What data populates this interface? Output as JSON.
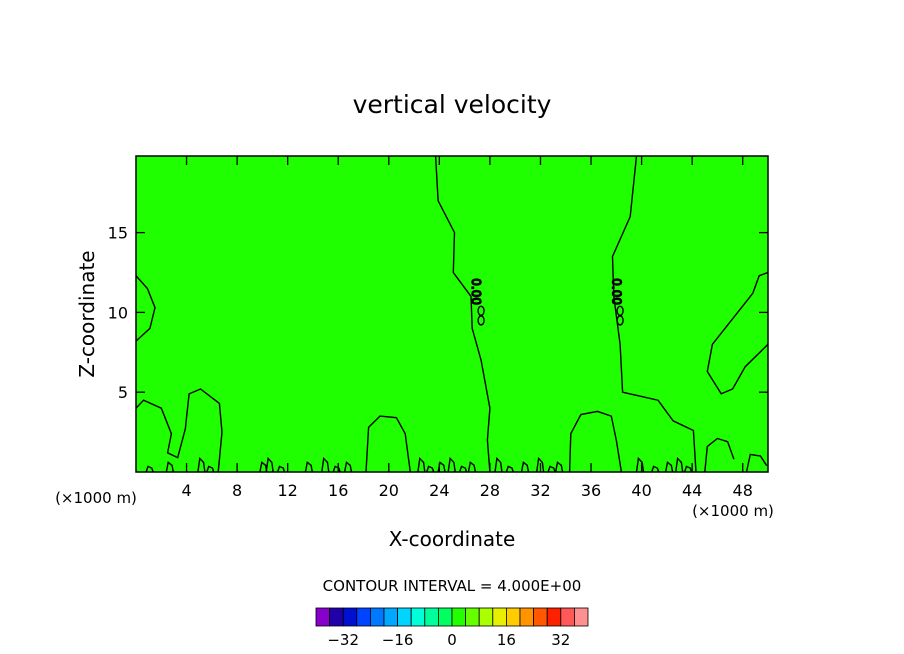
{
  "chart_data": {
    "type": "contour",
    "title": "vertical velocity",
    "xlabel": "X-coordinate",
    "ylabel": "Z-coordinate",
    "x_unit": "(×1000 m)",
    "x_unit_right": "(×1000 m)",
    "xlim": [
      0,
      50
    ],
    "ylim": [
      0,
      19.8
    ],
    "x_ticks": [
      4,
      8,
      12,
      16,
      20,
      24,
      28,
      32,
      36,
      40,
      44,
      48
    ],
    "y_ticks": [
      5,
      10,
      15
    ],
    "contour_interval_text": "CONTOUR INTERVAL = 4.000E+00",
    "contour_interval": 4,
    "contour_labels": [
      "0.00",
      "0.00"
    ],
    "field_fill_color": "#1fff00",
    "colorbar": {
      "colors": [
        "#8800cc",
        "#2200a8",
        "#0010d0",
        "#0044ff",
        "#0078ff",
        "#00a8ff",
        "#00d4ff",
        "#00ffd8",
        "#00ff9c",
        "#00ff60",
        "#22ff00",
        "#66ff00",
        "#aaff00",
        "#e6f000",
        "#ffcc00",
        "#ff9400",
        "#ff5800",
        "#ff2000",
        "#ff5858",
        "#ff9090"
      ],
      "tick_labels": [
        "-32",
        "-16",
        "0",
        "16",
        "32"
      ],
      "tick_values": [
        -32,
        -16,
        0,
        16,
        32
      ],
      "vmin": -40,
      "vmax": 40
    },
    "zero_contour_band": {
      "left_edge": [
        [
          23.7,
          19.8
        ],
        [
          23.9,
          17
        ],
        [
          25.2,
          15
        ],
        [
          25.1,
          12.5
        ],
        [
          26.5,
          11
        ],
        [
          26.6,
          9
        ],
        [
          27.3,
          7
        ],
        [
          28.0,
          4
        ],
        [
          27.8,
          2
        ],
        [
          28.0,
          0
        ]
      ],
      "right_edge": [
        [
          39.6,
          19.8
        ],
        [
          39.1,
          16
        ],
        [
          37.7,
          13.5
        ],
        [
          37.8,
          11
        ],
        [
          38.3,
          8
        ],
        [
          38.5,
          5
        ],
        [
          41.3,
          4.5
        ],
        [
          42.5,
          3.2
        ],
        [
          44.1,
          2.6
        ],
        [
          44.3,
          0
        ]
      ]
    }
  }
}
